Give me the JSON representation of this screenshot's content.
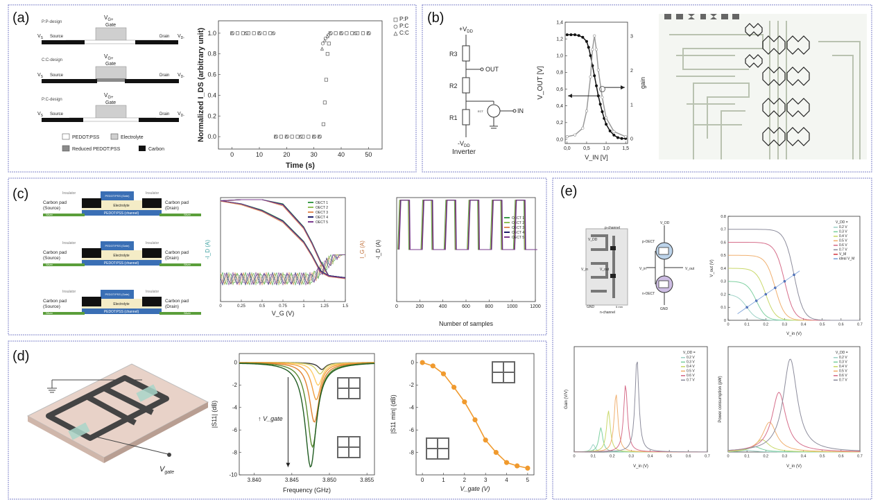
{
  "panels": {
    "a": {
      "label": "(a)",
      "designs": [
        {
          "name": "P:P-design",
          "gate": "V",
          "gate_sub": "G+",
          "gate_label": "Gate",
          "vs": "V",
          "vs_sub": "S",
          "source": "Source",
          "drain": "Drain",
          "vd": "V",
          "vd_sub": "D-"
        },
        {
          "name": "C:C-design",
          "gate": "V",
          "gate_sub": "G+",
          "gate_label": "Gate",
          "vs": "V",
          "vs_sub": "S",
          "source": "Source",
          "drain": "Drain",
          "vd": "V",
          "vd_sub": "D-"
        },
        {
          "name": "P:C-design",
          "gate": "V",
          "gate_sub": "G+",
          "gate_label": "Gate",
          "vs": "V",
          "vs_sub": "S",
          "source": "Source",
          "drain": "Drain",
          "vd": "V",
          "vd_sub": "D-"
        }
      ],
      "legend": [
        "PEDOT:PSS",
        "Electrolyte",
        "Reduced PEDOT:PSS",
        "Carbon"
      ]
    },
    "b": {
      "label": "(b)",
      "vdd": "+V",
      "vdd_sub": "DD",
      "vss": "-V",
      "vss_sub": "DD",
      "r3": "R3",
      "r2": "R2",
      "r1": "R1",
      "out": "OUT",
      "in": "IN",
      "ect": "ECT",
      "title": "Inverter"
    },
    "c": {
      "label": "(c)",
      "stack": {
        "insulator": "Insulator",
        "gate": "PEDOT:PSS (Gate)",
        "electrolyte": "Electrolyte",
        "channel": "PEDOT:PSS (channel)",
        "source": "Carbon pad (Source)",
        "drain": "Carbon pad (Drain)",
        "silver": "Silver"
      }
    },
    "d": {
      "label": "(d)",
      "vgate": "V",
      "vgate_sub": "gate"
    },
    "e": {
      "label": "(e)",
      "circuit": {
        "p_channel": "p-channel",
        "n_channel": "n-channel",
        "vdd": "V_DD",
        "gnd": "GND",
        "pvin": "V_in",
        "pvout": "V_out",
        "p_oect": "p-OECT",
        "n_oect": "n-OECT",
        "vin2": "V_in",
        "vout2": "V_out",
        "gnd2": "GND",
        "vdd2": "V_DD",
        "scale": "5 mm"
      }
    }
  },
  "chart_data": [
    {
      "id": "a-switching",
      "type": "scatter",
      "title": "",
      "xlabel": "Time (s)",
      "ylabel": "Normalized I_DS (arbitrary unit)",
      "xlim": [
        -5,
        55
      ],
      "ylim": [
        -0.12,
        1.12
      ],
      "xticks": [
        "0",
        "10",
        "20",
        "30",
        "40",
        "50"
      ],
      "yticks": [
        "0.0",
        "0.2",
        "0.4",
        "0.6",
        "0.8",
        "1.0"
      ],
      "legend": [
        "P:P",
        "P:C",
        "C:C"
      ],
      "series": [
        {
          "name": "P:P",
          "x": [
            0,
            2,
            4,
            6,
            8,
            10,
            12,
            14,
            16,
            18,
            20,
            22,
            24,
            26,
            28,
            30,
            32,
            33.5,
            34,
            34.5,
            35,
            35.5,
            36,
            38,
            40,
            42,
            44,
            46,
            48,
            50
          ],
          "y": [
            1,
            1,
            1,
            1,
            1,
            1,
            1,
            1,
            0,
            0,
            0,
            0,
            0,
            0,
            0,
            0,
            0,
            0.12,
            0.33,
            0.55,
            0.8,
            0.9,
            1,
            1,
            1,
            1,
            1,
            1,
            1,
            1
          ]
        },
        {
          "name": "P:C",
          "x": [
            0,
            5,
            10,
            15,
            16,
            20,
            25,
            30,
            32,
            33,
            34,
            35,
            36,
            40,
            45,
            50
          ],
          "y": [
            1,
            1,
            1,
            1,
            0,
            0,
            0,
            0,
            0,
            0.9,
            0.95,
            0.98,
            1,
            1,
            1,
            1
          ]
        },
        {
          "name": "C:C",
          "x": [
            0,
            5,
            10,
            15,
            16,
            20,
            25,
            30,
            32,
            33,
            34,
            35,
            36,
            40,
            45,
            50
          ],
          "y": [
            1,
            1,
            1,
            1,
            0,
            0,
            0,
            0,
            0,
            0.85,
            0.93,
            0.97,
            1,
            1,
            1,
            1
          ]
        }
      ]
    },
    {
      "id": "b-transfer",
      "type": "line",
      "xlabel": "V_IN [V]",
      "ylabel": "V_OUT [V]",
      "y2label": "gain",
      "xlim": [
        -0.05,
        1.55
      ],
      "ylim": [
        -0.05,
        1.4
      ],
      "y2lim": [
        -0.15,
        3.4
      ],
      "xticks": [
        "0,0",
        "0,5",
        "1,0",
        "1,5"
      ],
      "yticks": [
        "0,0",
        "0,2",
        "0,4",
        "0,6",
        "0,8",
        "1,0",
        "1,2",
        "1,4"
      ],
      "y2ticks": [
        "0",
        "1",
        "2",
        "3"
      ],
      "series": [
        {
          "name": "V_OUT",
          "x": [
            0,
            0.1,
            0.2,
            0.3,
            0.4,
            0.5,
            0.55,
            0.6,
            0.65,
            0.7,
            0.75,
            0.8,
            0.85,
            0.9,
            0.95,
            1.0,
            1.1,
            1.2,
            1.3,
            1.4,
            1.5
          ],
          "y": [
            1.25,
            1.25,
            1.25,
            1.24,
            1.22,
            1.17,
            1.1,
            1.0,
            0.88,
            0.76,
            0.64,
            0.52,
            0.42,
            0.33,
            0.25,
            0.18,
            0.1,
            0.05,
            0.02,
            0.01,
            0.01
          ]
        },
        {
          "name": "gain",
          "x": [
            0,
            0.2,
            0.4,
            0.5,
            0.6,
            0.65,
            0.7,
            0.75,
            0.8,
            0.9,
            1.0,
            1.2,
            1.5
          ],
          "y": [
            0.05,
            0.1,
            0.3,
            0.8,
            1.8,
            2.6,
            3.0,
            2.6,
            2.0,
            1.2,
            0.6,
            0.2,
            0.05
          ]
        }
      ]
    },
    {
      "id": "c-transfer",
      "type": "line",
      "xlabel": "V_G (V)",
      "ylabel": "-I_D (A)",
      "y2label": "I_G (A)",
      "xlim": [
        0,
        1.5
      ],
      "ylim": [
        -12,
        -2
      ],
      "xticks": [
        "0",
        "0.25",
        "0.5",
        "0.75",
        "1",
        "1.25",
        "1.5"
      ],
      "legend": [
        "OECT 1",
        "OECT 2",
        "OECT 3",
        "OECT 4",
        "OECT 5"
      ],
      "series": [
        {
          "name": "OECT 1",
          "x": [
            0,
            0.25,
            0.5,
            0.75,
            1.0,
            1.1,
            1.2,
            1.3,
            1.4,
            1.5
          ],
          "y": [
            -2.3,
            -2.6,
            -3.2,
            -4.2,
            -6.2,
            -7.5,
            -9.0,
            -9.5,
            -9.6,
            -9.7
          ]
        },
        {
          "name": "OECT 2",
          "x": [
            0,
            0.25,
            0.5,
            0.75,
            1.0,
            1.1,
            1.2,
            1.3,
            1.4,
            1.5
          ],
          "y": [
            -2.3,
            -2.65,
            -3.3,
            -4.3,
            -6.3,
            -7.6,
            -9.1,
            -9.5,
            -9.6,
            -9.7
          ]
        },
        {
          "name": "OECT 3",
          "x": [
            0,
            0.25,
            0.5,
            0.75,
            1.0,
            1.1,
            1.2,
            1.3,
            1.4,
            1.5
          ],
          "y": [
            -2.35,
            -2.7,
            -3.35,
            -4.4,
            -6.4,
            -7.7,
            -9.2,
            -9.6,
            -9.7,
            -9.8
          ]
        },
        {
          "name": "OECT 4",
          "x": [
            0,
            0.25,
            0.5,
            0.75,
            1.0,
            1.1,
            1.2,
            1.3,
            1.4,
            1.5
          ],
          "y": [
            -2.3,
            -2.6,
            -3.25,
            -4.25,
            -6.25,
            -7.55,
            -9.05,
            -9.5,
            -9.6,
            -9.7
          ]
        },
        {
          "name": "OECT 5",
          "x": [
            0,
            0.25,
            0.5,
            0.75,
            1.0,
            1.1,
            1.2,
            1.3,
            1.4,
            1.5
          ],
          "y": [
            -2.3,
            -2.62,
            -3.28,
            -4.3,
            -6.3,
            -7.6,
            -9.1,
            -9.55,
            -9.65,
            -9.75
          ]
        }
      ]
    },
    {
      "id": "c-switching",
      "type": "line",
      "xlabel": "Number of samples",
      "ylabel": "-I_D (A)",
      "xlim": [
        0,
        1200
      ],
      "ylim": [
        -11,
        -3
      ],
      "xticks": [
        "0",
        "200",
        "400",
        "600",
        "800",
        "1000",
        "1200"
      ],
      "legend": [
        "OECT 1",
        "OECT 2",
        "OECT 3",
        "OECT 4",
        "OECT 5"
      ],
      "period": 200,
      "on_level": -3.2,
      "off_level": -7.0
    },
    {
      "id": "d-s11",
      "type": "line",
      "xlabel": "Frequency (GHz)",
      "ylabel": "|S11| (dB)",
      "xlim": [
        3.838,
        3.856
      ],
      "ylim": [
        -10,
        0.8
      ],
      "xticks": [
        "3.840",
        "3.845",
        "3.850",
        "3.855"
      ],
      "yticks": [
        "0",
        "-2",
        "-4",
        "-6",
        "-8",
        "-10"
      ],
      "annotation": "↑ V_gate",
      "resonance_depths": [
        -0.6,
        -1.0,
        -2.0,
        -3.3,
        -5.3,
        -7.5,
        -9.3
      ]
    },
    {
      "id": "d-s11min",
      "type": "line",
      "xlabel": "V_gate (V)",
      "ylabel": "|S11 min| (dB)",
      "xlim": [
        -0.3,
        5.3
      ],
      "ylim": [
        -10,
        0.8
      ],
      "xticks": [
        "0",
        "1",
        "2",
        "3",
        "4",
        "5"
      ],
      "yticks": [
        "0",
        "-2",
        "-4",
        "-6",
        "-8"
      ],
      "x": [
        0,
        0.5,
        1,
        1.5,
        2,
        2.5,
        3,
        3.5,
        4,
        4.5,
        5
      ],
      "y": [
        0,
        -0.3,
        -1,
        -2.2,
        -3.5,
        -5.1,
        -6.9,
        -8,
        -8.9,
        -9.2,
        -9.4
      ]
    },
    {
      "id": "e-vtc",
      "type": "line",
      "xlabel": "V_in (V)",
      "ylabel": "V_out (V)",
      "xlim": [
        0,
        0.7
      ],
      "ylim": [
        0,
        0.8
      ],
      "xticks": [
        "0",
        "0.1",
        "0.2",
        "0.3",
        "0.4",
        "0.5",
        "0.6",
        "0.7"
      ],
      "yticks": [
        "0",
        "0.1",
        "0.2",
        "0.3",
        "0.4",
        "0.5",
        "0.6",
        "0.7",
        "0.8"
      ],
      "legend_title": "V_DD =",
      "legend": [
        "0.2 V",
        "0.3 V",
        "0.4 V",
        "0.5 V",
        "0.6 V",
        "0.7 V",
        "V_M",
        "ideal V_M"
      ],
      "vdd": [
        0.2,
        0.3,
        0.4,
        0.5,
        0.6,
        0.7
      ]
    },
    {
      "id": "e-gain",
      "type": "line",
      "xlabel": "V_in (V)",
      "ylabel": "Gain (V/V)",
      "xlim": [
        0,
        0.7
      ],
      "ylim": [
        0,
        28
      ],
      "xticks": [
        "0",
        "0.1",
        "0.2",
        "0.3",
        "0.4",
        "0.5",
        "0.6",
        "0.7"
      ],
      "yticks": [],
      "legend_title": "V_DD =",
      "legend": [
        "0.2 V",
        "0.3 V",
        "0.4 V",
        "0.5 V",
        "0.6 V",
        "0.7 V"
      ],
      "peaks": [
        [
          0.1,
          2
        ],
        [
          0.14,
          6.5
        ],
        [
          0.18,
          11
        ],
        [
          0.22,
          15.5
        ],
        [
          0.27,
          18
        ],
        [
          0.33,
          25
        ]
      ]
    },
    {
      "id": "e-power",
      "type": "line",
      "xlabel": "V_in (V)",
      "ylabel": "Power consumption (pW)",
      "xlim": [
        0,
        0.7
      ],
      "ylim": [
        0,
        3
      ],
      "xticks": [
        "0",
        "0.1",
        "0.2",
        "0.3",
        "0.4",
        "0.5",
        "0.6",
        "0.7"
      ],
      "yticks": [],
      "legend_title": "V_DD =",
      "legend": [
        "0.2 V",
        "0.3 V",
        "0.4 V",
        "0.5 V",
        "0.6 V",
        "0.7 V"
      ],
      "peaks": [
        [
          0.1,
          0.05
        ],
        [
          0.14,
          0.15
        ],
        [
          0.18,
          0.35
        ],
        [
          0.22,
          0.85
        ],
        [
          0.27,
          1.7
        ],
        [
          0.33,
          2.65
        ]
      ]
    }
  ],
  "colors": {
    "frame": "#7d82c8",
    "oect": [
      "#3b9b4a",
      "#8fbf55",
      "#e08c58",
      "#1e1e6a",
      "#7a3a8e"
    ],
    "vdd": [
      "#9fd3c7",
      "#7ed0a0",
      "#c9d86a",
      "#f0b070",
      "#d66d8a",
      "#8c8c9c"
    ],
    "orange": "#f09a2e",
    "green_dark": "#1f5b20"
  }
}
